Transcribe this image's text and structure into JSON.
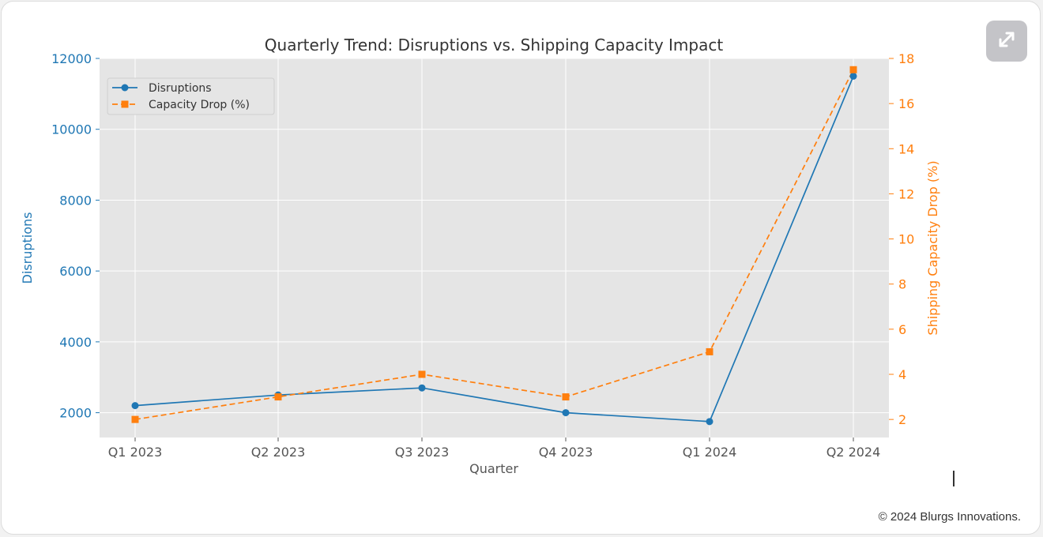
{
  "expand_icon": "expand-arrows-icon",
  "footer": {
    "copyright": "© 2024 Blurgs Innovations."
  },
  "colors": {
    "disruptions": "#1f77b4",
    "capacity": "#ff7f0e",
    "plot_bg": "#e5e5e5",
    "grid": "#ffffff",
    "button_bg": "#c4c4c8"
  },
  "chart_data": {
    "type": "line",
    "title": "Quarterly Trend: Disruptions vs. Shipping Capacity Impact",
    "xlabel": "Quarter",
    "ylabel": "Disruptions",
    "ylabel_right": "Shipping Capacity Drop (%)",
    "categories": [
      "Q1 2023",
      "Q2 2023",
      "Q3 2023",
      "Q4 2023",
      "Q1 2024",
      "Q2 2024"
    ],
    "series": [
      {
        "name": "Disruptions",
        "axis": "left",
        "style": "solid",
        "marker": "circle",
        "color": "#1f77b4",
        "values": [
          2200,
          2500,
          2700,
          2000,
          1750,
          11500
        ]
      },
      {
        "name": "Capacity Drop (%)",
        "axis": "right",
        "style": "dashed",
        "marker": "square",
        "color": "#ff7f0e",
        "values": [
          2,
          3,
          4,
          3,
          5,
          17.5
        ]
      }
    ],
    "ylim": [
      1300,
      12000
    ],
    "ylim_right": [
      1.2,
      18
    ],
    "yticks": [
      2000,
      4000,
      6000,
      8000,
      10000,
      12000
    ],
    "yticks_right": [
      2,
      4,
      6,
      8,
      10,
      12,
      14,
      16,
      18
    ],
    "grid": true,
    "legend": "top-left"
  }
}
